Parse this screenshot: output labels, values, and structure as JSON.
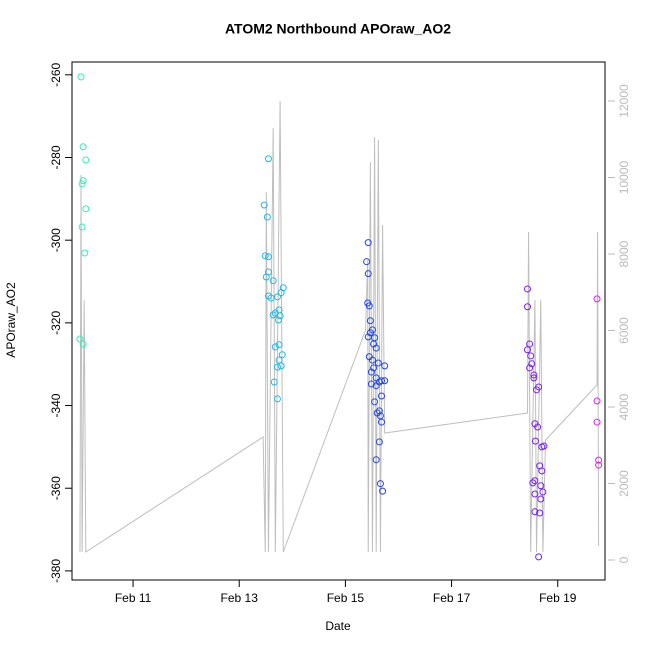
{
  "chart_data": {
    "type": "scatter",
    "title": "ATOM2 Northbound APOraw_AO2",
    "x_label": "Date",
    "y_label": "APOraw_AO2",
    "xlim": [
      9.85,
      19.89
    ],
    "xticks": [
      {
        "value": 11,
        "label": "Feb 11"
      },
      {
        "value": 13,
        "label": "Feb 13"
      },
      {
        "value": 15,
        "label": "Feb 15"
      },
      {
        "value": 17,
        "label": "Feb 17"
      },
      {
        "value": 19,
        "label": "Feb 19"
      }
    ],
    "ylim": [
      -382.2,
      -256.9
    ],
    "yticks": [
      -380,
      -360,
      -340,
      -320,
      -300,
      -280,
      -260
    ],
    "y2lim": [
      -523,
      13020
    ],
    "y2ticks": [
      0,
      2000,
      4000,
      6000,
      8000,
      10000,
      12000
    ],
    "series": [
      {
        "color": "#33eebb",
        "x": [
          10.02,
          10.06,
          10.11,
          10.06,
          10.04,
          10.11,
          10.04,
          10.09,
          10.0,
          10.06
        ],
        "values": [
          -260.5,
          -277.4,
          -280.6,
          -285.6,
          -286.4,
          -292.4,
          -296.8,
          -303.1,
          -323.9,
          -325.1
        ]
      },
      {
        "color": "#22b8e8",
        "x": [
          13.55,
          13.47,
          13.53,
          13.49,
          13.55,
          13.51,
          13.55,
          13.64,
          13.55,
          13.6,
          13.72,
          13.83,
          13.79,
          13.68,
          13.64,
          13.75,
          13.74,
          13.77,
          13.68,
          13.75,
          13.81,
          13.75,
          13.79,
          13.72,
          13.66,
          13.72
        ],
        "values": [
          -280.3,
          -291.5,
          -294.4,
          -303.8,
          -304.0,
          -308.9,
          -307.7,
          -309.8,
          -313.5,
          -314.0,
          -313.7,
          -311.5,
          -312.7,
          -317.6,
          -318.1,
          -316.9,
          -319.3,
          -318.3,
          -325.8,
          -325.3,
          -327.7,
          -329.0,
          -330.4,
          -330.7,
          -334.3,
          -338.4
        ]
      },
      {
        "color": "#2244ee",
        "x": [
          15.43,
          15.4,
          15.43,
          15.42,
          15.45,
          15.47,
          15.51,
          15.47,
          15.55,
          15.43,
          15.53,
          15.58,
          15.51,
          15.45,
          15.62,
          15.74,
          15.53,
          15.49,
          15.58,
          15.64,
          15.49,
          15.68,
          15.74,
          15.58,
          15.68,
          15.55,
          15.64,
          15.6,
          15.66,
          15.68,
          15.64,
          15.58,
          15.66,
          15.7
        ],
        "values": [
          -300.6,
          -305.2,
          -308.1,
          -315.2,
          -315.9,
          -319.5,
          -321.7,
          -322.4,
          -323.6,
          -323.4,
          -325.1,
          -326.1,
          -329.0,
          -328.2,
          -329.7,
          -330.4,
          -330.9,
          -331.9,
          -333.3,
          -334.3,
          -334.8,
          -334.0,
          -334.0,
          -335.2,
          -337.7,
          -339.1,
          -341.3,
          -341.8,
          -342.5,
          -344.0,
          -348.8,
          -353.1,
          -358.9,
          -360.7
        ]
      },
      {
        "color": "#7722ee",
        "x": [
          18.43,
          18.43,
          18.47,
          18.43,
          18.49,
          18.51,
          18.47,
          18.55,
          18.55,
          18.64,
          18.6,
          18.57,
          18.62,
          18.58,
          18.7,
          18.74,
          18.66,
          18.7,
          18.57,
          18.53,
          18.68,
          18.72,
          18.57,
          18.68,
          18.57,
          18.66,
          18.64
        ],
        "values": [
          -311.8,
          -316.1,
          -325.1,
          -326.5,
          -328.0,
          -329.9,
          -330.9,
          -332.6,
          -333.3,
          -335.5,
          -336.2,
          -344.4,
          -345.2,
          -348.6,
          -350.0,
          -349.8,
          -354.6,
          -355.8,
          -358.2,
          -358.7,
          -359.4,
          -360.9,
          -361.4,
          -362.6,
          -365.7,
          -366.0,
          -376.6
        ]
      },
      {
        "color": "#e022ee",
        "x": [
          19.74,
          19.74,
          19.74,
          19.77,
          19.77
        ],
        "values": [
          -314.2,
          -338.9,
          -344.0,
          -353.2,
          -354.4
        ]
      },
      {
        "color": "#bebebe",
        "axis": "y2",
        "style": "line",
        "x": [
          10.0,
          10.02,
          10.04,
          10.08,
          10.11,
          13.45,
          13.49,
          13.51,
          13.55,
          13.64,
          13.68,
          13.77,
          13.83,
          15.38,
          15.42,
          15.43,
          15.47,
          15.51,
          15.55,
          15.58,
          15.62,
          15.66,
          15.7,
          15.74,
          18.43,
          18.45,
          18.49,
          18.57,
          18.6,
          18.68,
          18.72,
          18.77,
          19.74,
          19.75,
          19.77
        ],
        "values": [
          209,
          10065,
          209,
          6797,
          209,
          3216,
          209,
          9621,
          209,
          11294,
          209,
          12000,
          209,
          6013,
          7843,
          209,
          10405,
          209,
          11059,
          209,
          10980,
          209,
          8758,
          3320,
          3843,
          8575,
          209,
          6797,
          209,
          6797,
          209,
          3137,
          4575,
          8575,
          366
        ]
      }
    ]
  }
}
